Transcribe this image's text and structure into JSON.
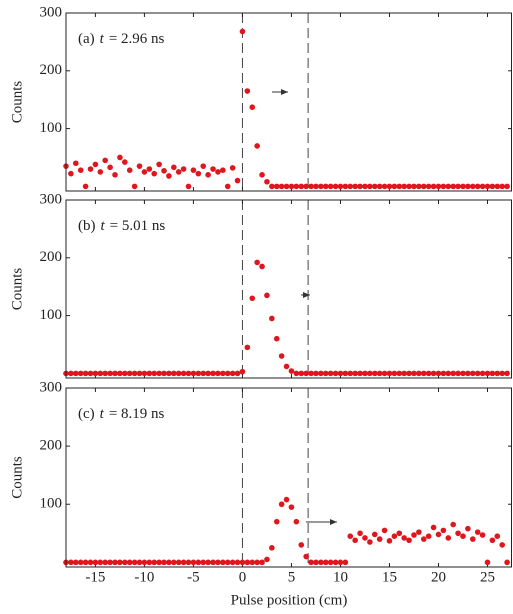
{
  "chart_data": [
    {
      "type": "scatter",
      "label": {
        "prefix": "(a)",
        "var": "t",
        "rest": "= 2.96 ns"
      },
      "ylabel": "Counts",
      "color": "#e0161f",
      "xlim": [
        -18,
        27.5
      ],
      "ylim": [
        -8,
        300
      ],
      "xticks": [
        -15,
        -10,
        -5,
        0,
        5,
        10,
        15,
        20,
        25
      ],
      "yticks": [
        100,
        200,
        300
      ],
      "vlines": [
        0,
        6.7
      ],
      "x": [
        -18,
        -17.5,
        -17,
        -16.5,
        -16,
        -15.5,
        -15,
        -14.5,
        -14,
        -13.5,
        -13,
        -12.5,
        -12,
        -11.5,
        -11,
        -10.5,
        -10,
        -9.5,
        -9,
        -8.5,
        -8,
        -7.5,
        -7,
        -6.5,
        -6,
        -5.5,
        -5,
        -4.5,
        -4,
        -3.5,
        -3,
        -2.5,
        -2,
        -1.5,
        -1,
        -0.5,
        0,
        0.5,
        1,
        1.5,
        2,
        2.5,
        3,
        3.5,
        4,
        4.5,
        5,
        5.5,
        6,
        6.5,
        7,
        7.5,
        8,
        8.5,
        9,
        9.5,
        10,
        10.5,
        11,
        11.5,
        12,
        12.5,
        13,
        13.5,
        14,
        14.5,
        15,
        15.5,
        16,
        16.5,
        17,
        17.5,
        18,
        18.5,
        19,
        19.5,
        20,
        20.5,
        21,
        21.5,
        22,
        22.5,
        23,
        23.5,
        24,
        24.5,
        25,
        25.5,
        26,
        26.5,
        27
      ],
      "values": [
        35,
        22,
        40,
        28,
        0,
        30,
        38,
        25,
        45,
        33,
        20,
        50,
        42,
        28,
        0,
        35,
        25,
        30,
        22,
        38,
        27,
        18,
        33,
        25,
        30,
        0,
        28,
        22,
        35,
        20,
        30,
        25,
        28,
        0,
        32,
        10,
        268,
        165,
        137,
        70,
        20,
        8,
        0,
        0,
        0,
        0,
        0,
        0,
        0,
        0,
        0,
        0,
        0,
        0,
        0,
        0,
        0,
        0,
        0,
        0,
        0,
        0,
        0,
        0,
        0,
        0,
        0,
        0,
        0,
        0,
        0,
        0,
        0,
        0,
        0,
        0,
        0,
        0,
        0,
        0,
        0,
        0,
        0,
        0,
        0,
        0,
        0,
        0,
        0,
        0,
        0
      ]
    },
    {
      "type": "scatter",
      "label": {
        "prefix": "(b)",
        "var": "t",
        "rest": "= 5.01 ns"
      },
      "ylabel": "Counts",
      "color": "#e0161f",
      "xlim": [
        -18,
        27.5
      ],
      "ylim": [
        -8,
        300
      ],
      "xticks": [
        -15,
        -10,
        -5,
        0,
        5,
        10,
        15,
        20,
        25
      ],
      "yticks": [
        100,
        200,
        300
      ],
      "vlines": [
        0,
        6.7
      ],
      "x": [
        -18,
        -17.5,
        -17,
        -16.5,
        -16,
        -15.5,
        -15,
        -14.5,
        -14,
        -13.5,
        -13,
        -12.5,
        -12,
        -11.5,
        -11,
        -10.5,
        -10,
        -9.5,
        -9,
        -8.5,
        -8,
        -7.5,
        -7,
        -6.5,
        -6,
        -5.5,
        -5,
        -4.5,
        -4,
        -3.5,
        -3,
        -2.5,
        -2,
        -1.5,
        -1,
        -0.5,
        0,
        0.5,
        1,
        1.5,
        2,
        2.5,
        3,
        3.5,
        4,
        4.5,
        5,
        5.5,
        6,
        6.5,
        7,
        7.5,
        8,
        8.5,
        9,
        9.5,
        10,
        10.5,
        11,
        11.5,
        12,
        12.5,
        13,
        13.5,
        14,
        14.5,
        15,
        15.5,
        16,
        16.5,
        17,
        17.5,
        18,
        18.5,
        19,
        19.5,
        20,
        20.5,
        21,
        21.5,
        22,
        22.5,
        23,
        23.5,
        24,
        24.5,
        25,
        25.5,
        26,
        26.5,
        27
      ],
      "values": [
        0,
        0,
        0,
        0,
        0,
        0,
        0,
        0,
        0,
        0,
        0,
        0,
        0,
        0,
        0,
        0,
        0,
        0,
        0,
        0,
        0,
        0,
        0,
        0,
        0,
        0,
        0,
        0,
        0,
        0,
        0,
        0,
        0,
        0,
        0,
        0,
        3,
        45,
        130,
        192,
        185,
        135,
        95,
        60,
        30,
        12,
        4,
        0,
        0,
        0,
        0,
        0,
        0,
        0,
        0,
        0,
        0,
        0,
        0,
        0,
        0,
        0,
        0,
        0,
        0,
        0,
        0,
        0,
        0,
        0,
        0,
        0,
        0,
        0,
        0,
        0,
        0,
        0,
        0,
        0,
        0,
        0,
        0,
        0,
        0,
        0,
        0,
        0,
        0,
        0,
        0
      ]
    },
    {
      "type": "scatter",
      "label": {
        "prefix": "(c)",
        "var": "t",
        "rest": "= 8.19 ns"
      },
      "ylabel": "Counts",
      "xlabel": "Pulse position (cm)",
      "color": "#e0161f",
      "xlim": [
        -18,
        27.5
      ],
      "ylim": [
        -8,
        300
      ],
      "xticks": [
        -15,
        -10,
        -5,
        0,
        5,
        10,
        15,
        20,
        25
      ],
      "yticks": [
        100,
        200,
        300
      ],
      "vlines": [
        0,
        6.7
      ],
      "x": [
        -18,
        -17.5,
        -17,
        -16.5,
        -16,
        -15.5,
        -15,
        -14.5,
        -14,
        -13.5,
        -13,
        -12.5,
        -12,
        -11.5,
        -11,
        -10.5,
        -10,
        -9.5,
        -9,
        -8.5,
        -8,
        -7.5,
        -7,
        -6.5,
        -6,
        -5.5,
        -5,
        -4.5,
        -4,
        -3.5,
        -3,
        -2.5,
        -2,
        -1.5,
        -1,
        -0.5,
        0,
        0.5,
        1,
        1.5,
        2,
        2.5,
        3,
        3.5,
        4,
        4.5,
        5,
        5.5,
        6,
        6.5,
        7,
        7.5,
        8,
        8.5,
        9,
        9.5,
        10,
        10.5,
        11,
        11.5,
        12,
        12.5,
        13,
        13.5,
        14,
        14.5,
        15,
        15.5,
        16,
        16.5,
        17,
        17.5,
        18,
        18.5,
        19,
        19.5,
        20,
        20.5,
        21,
        21.5,
        22,
        22.5,
        23,
        23.5,
        24,
        24.5,
        25,
        25.5,
        26,
        26.5,
        27
      ],
      "values": [
        0,
        0,
        0,
        0,
        0,
        0,
        0,
        0,
        0,
        0,
        0,
        0,
        0,
        0,
        0,
        0,
        0,
        0,
        0,
        0,
        0,
        0,
        0,
        0,
        0,
        0,
        0,
        0,
        0,
        0,
        0,
        0,
        0,
        0,
        0,
        0,
        0,
        0,
        0,
        0,
        0,
        5,
        25,
        70,
        100,
        108,
        95,
        70,
        30,
        10,
        0,
        0,
        0,
        0,
        0,
        0,
        0,
        0,
        45,
        38,
        50,
        42,
        35,
        48,
        40,
        55,
        37,
        45,
        50,
        42,
        38,
        47,
        52,
        40,
        45,
        60,
        48,
        55,
        42,
        65,
        50,
        45,
        58,
        40,
        52,
        47,
        0,
        38,
        45,
        30,
        0
      ]
    }
  ]
}
